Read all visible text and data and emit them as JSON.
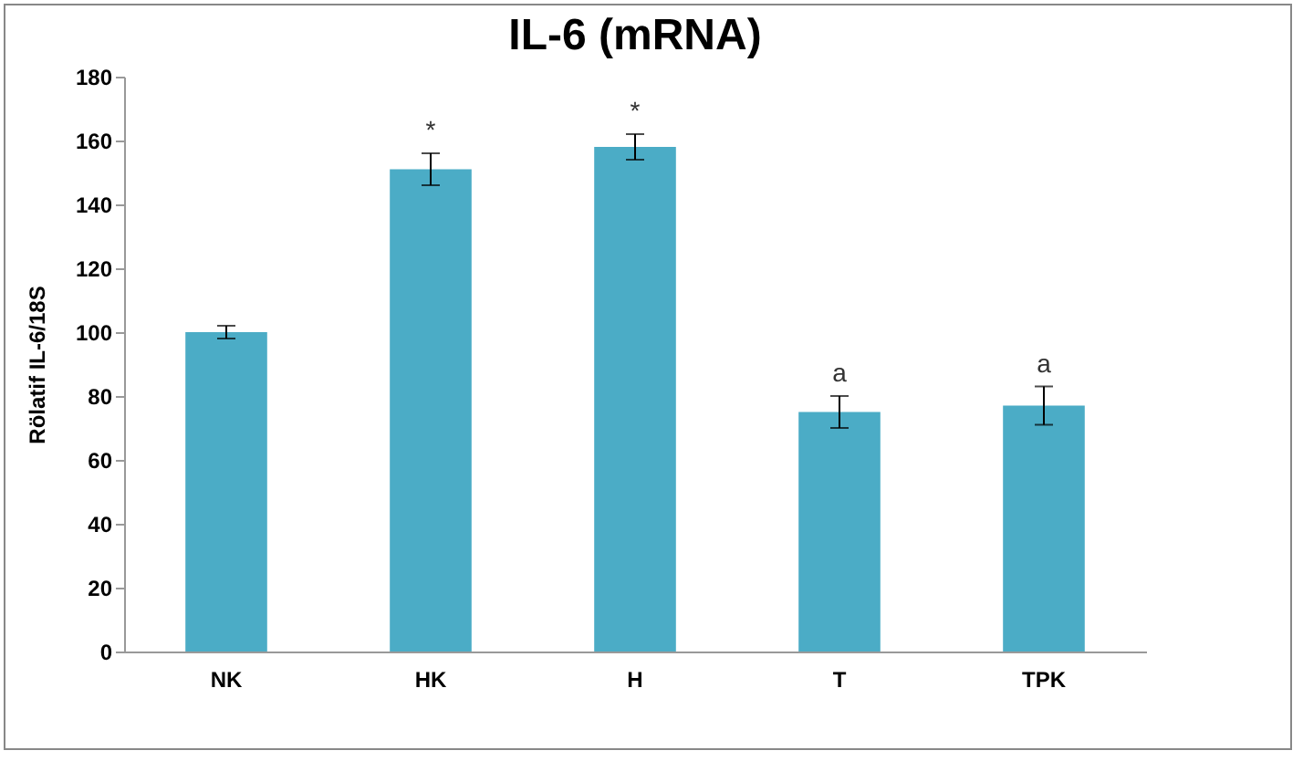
{
  "chart_data": {
    "type": "bar",
    "title": "IL-6 (mRNA)",
    "ylabel": "Rölatif IL-6/18S",
    "categories": [
      "NK",
      "HK",
      "H",
      "T",
      "TPK"
    ],
    "values": [
      100,
      151,
      158,
      75,
      77
    ],
    "errors": [
      2,
      5,
      4,
      5,
      6
    ],
    "color": "#4bacc6",
    "ylim": [
      0,
      180
    ],
    "yticks": [
      0,
      20,
      40,
      60,
      80,
      100,
      120,
      140,
      160,
      180
    ],
    "grid": false,
    "annotations": [
      {
        "text": "*",
        "x": "HK",
        "y": 156
      },
      {
        "text": "*",
        "x": "H",
        "y": 162
      },
      {
        "text": "a",
        "x": "T",
        "y": 80
      },
      {
        "text": "a",
        "x": "TPK",
        "y": 83
      }
    ]
  }
}
